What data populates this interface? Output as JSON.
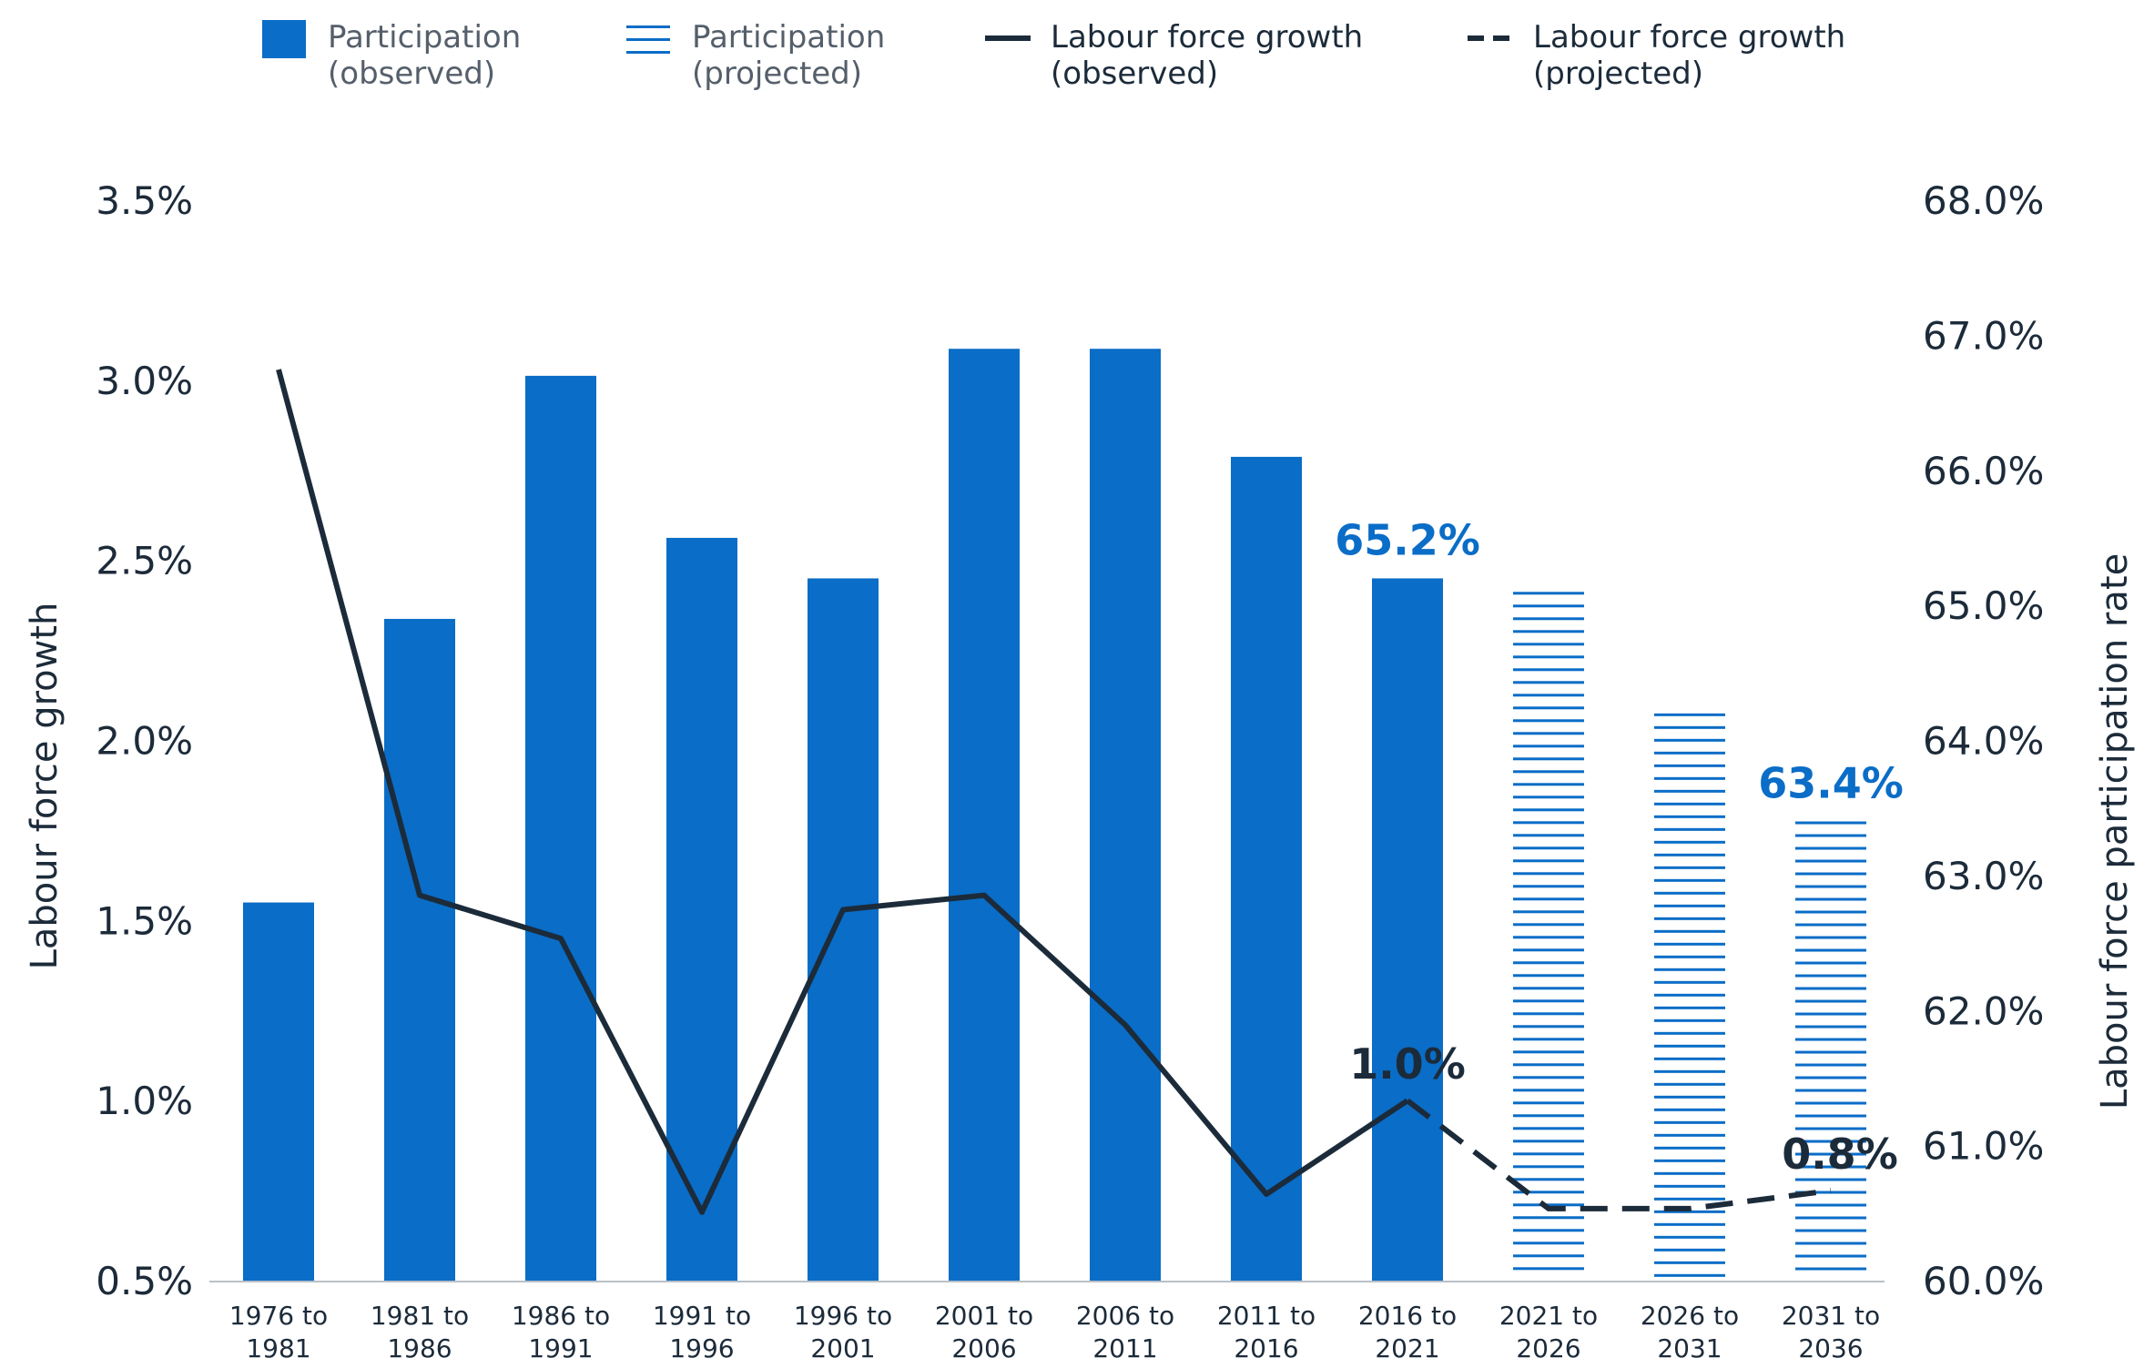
{
  "chart_data": {
    "type": "bar",
    "categories": [
      "1976 to 1981",
      "1981 to 1986",
      "1986 to 1991",
      "1991 to 1996",
      "1996 to 2001",
      "2001 to 2006",
      "2006 to 2011",
      "2011 to 2016",
      "2016 to 2021",
      "2021 to 2026",
      "2026 to 2031",
      "2031 to 2036"
    ],
    "series": [
      {
        "name": "Participation (observed)",
        "axis": "right",
        "kind": "bar",
        "style": "solid",
        "values": [
          62.8,
          64.9,
          66.7,
          65.5,
          65.2,
          66.9,
          66.9,
          66.1,
          65.2,
          null,
          null,
          null
        ]
      },
      {
        "name": "Participation (projected)",
        "axis": "right",
        "kind": "bar",
        "style": "striped",
        "values": [
          null,
          null,
          null,
          null,
          null,
          null,
          null,
          null,
          null,
          65.1,
          64.2,
          63.4
        ]
      },
      {
        "name": "Labour force growth (observed)",
        "axis": "left",
        "kind": "line",
        "style": "solid",
        "values": [
          3.03,
          1.57,
          1.45,
          0.69,
          1.53,
          1.57,
          1.21,
          0.74,
          1.0,
          null,
          null,
          null
        ]
      },
      {
        "name": "Labour force growth (projected)",
        "axis": "left",
        "kind": "line",
        "style": "dashed",
        "values": [
          null,
          null,
          null,
          null,
          null,
          null,
          null,
          null,
          1.0,
          0.7,
          0.7,
          0.75
        ]
      }
    ],
    "ylabel_left": "Labour force growth",
    "ylabel_right": "Labour force participation rate",
    "ylim_left": [
      0.5,
      3.5
    ],
    "ylim_right": [
      60.0,
      68.0
    ],
    "yticks_left": [
      "0.5%",
      "1.0%",
      "1.5%",
      "2.0%",
      "2.5%",
      "3.0%",
      "3.5%"
    ],
    "yticks_right": [
      "60.0%",
      "61.0%",
      "62.0%",
      "63.0%",
      "64.0%",
      "65.0%",
      "66.0%",
      "67.0%",
      "68.0%"
    ],
    "legend_position": "top",
    "annotations": [
      {
        "text": "65.2%",
        "series": "Participation (observed)",
        "category_index": 8,
        "color": "#0a6dc7"
      },
      {
        "text": "63.4%",
        "series": "Participation (projected)",
        "category_index": 11,
        "color": "#0a6dc7"
      },
      {
        "text": "1.0%",
        "series": "Labour force growth (observed)",
        "category_index": 8,
        "color": "#1c2b3a"
      },
      {
        "text": "0.8%",
        "series": "Labour force growth (projected)",
        "category_index": 11,
        "color": "#1c2b3a"
      }
    ],
    "colors": {
      "bar": "#0a6dc7",
      "line": "#1c2b3a",
      "text": "#1c2b3a"
    }
  },
  "legend": [
    {
      "line1": "Participation",
      "line2": "(observed)",
      "swatch": "solid-bar"
    },
    {
      "line1": "Participation",
      "line2": "(projected)",
      "swatch": "striped-bar"
    },
    {
      "line1": "Labour force growth",
      "line2": "(observed)",
      "swatch": "solid-line"
    },
    {
      "line1": "Labour force growth",
      "line2": "(projected)",
      "swatch": "dashed-line"
    }
  ]
}
